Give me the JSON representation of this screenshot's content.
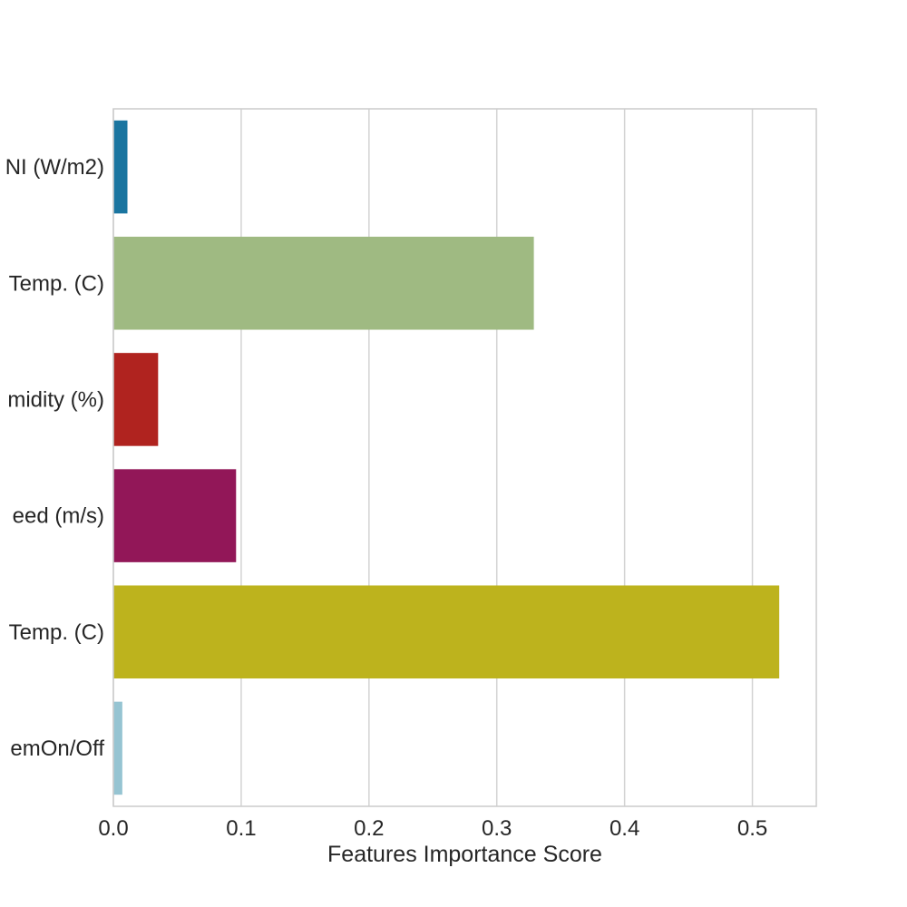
{
  "chart_data": {
    "type": "bar",
    "orientation": "horizontal",
    "categories": [
      "NI (W/m2)",
      "Temp. (C)",
      "midity (%)",
      "eed (m/s)",
      "Temp. (C)",
      "emOn/Off"
    ],
    "values": [
      0.011,
      0.329,
      0.035,
      0.096,
      0.521,
      0.007
    ],
    "colors": [
      "#1a75a0",
      "#9fba82",
      "#b0231f",
      "#921758",
      "#bdb31d",
      "#96c4d2"
    ],
    "xlabel": "Features Importance Score",
    "ylabel": "",
    "title": "",
    "xlim": [
      0,
      0.55
    ],
    "xticks": [
      0.0,
      0.1,
      0.2,
      0.3,
      0.4,
      0.5
    ],
    "xtick_labels": [
      "0.0",
      "0.1",
      "0.2",
      "0.3",
      "0.4",
      "0.5"
    ],
    "grid": "vertical",
    "grid_color": "#d3d3d3",
    "spine_color": "#cccccc"
  }
}
